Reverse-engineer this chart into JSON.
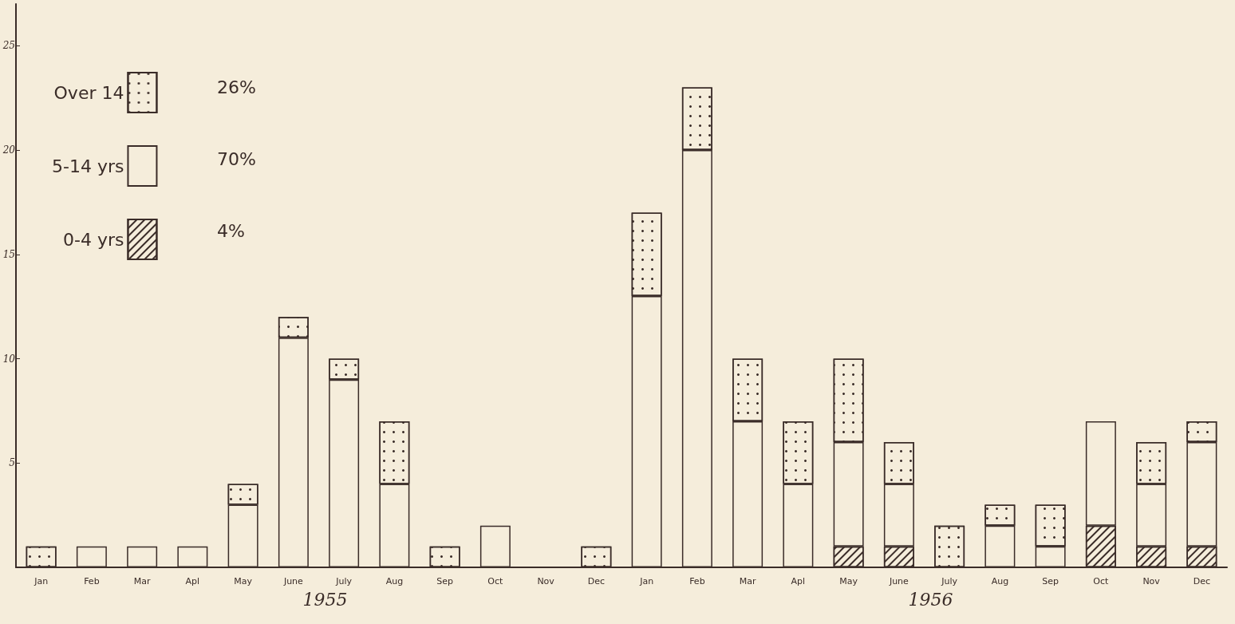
{
  "chart_data": {
    "type": "bar",
    "stacked": true,
    "categories": [
      "Jan",
      "Feb",
      "Mar",
      "Apl",
      "May",
      "June",
      "July",
      "Aug",
      "Sep",
      "Oct",
      "Nov",
      "Dec",
      "Jan",
      "Feb",
      "Mar",
      "Apl",
      "May",
      "June",
      "July",
      "Aug",
      "Sep",
      "Oct",
      "Nov",
      "Dec"
    ],
    "series": [
      {
        "name": "0-4 yrs",
        "color": "#f5eddb",
        "values": [
          0,
          0,
          0,
          0,
          0,
          0,
          0,
          0,
          0,
          0,
          0,
          0,
          0,
          0,
          0,
          0,
          1,
          1,
          0,
          0,
          0,
          2,
          1,
          1
        ]
      },
      {
        "name": "5-14 yrs",
        "color": "#f5eddb",
        "values": [
          0,
          1,
          1,
          1,
          3,
          11,
          9,
          4,
          0,
          2,
          0,
          0,
          13,
          20,
          7,
          4,
          5,
          3,
          0,
          2,
          1,
          5,
          3,
          5
        ]
      },
      {
        "name": "Over 14",
        "color": "#f5eddb",
        "values": [
          1,
          0,
          0,
          0,
          1,
          1,
          1,
          3,
          1,
          0,
          0,
          1,
          4,
          3,
          3,
          3,
          4,
          2,
          2,
          1,
          2,
          0,
          2,
          1
        ]
      }
    ],
    "ylim": [
      0,
      27
    ],
    "yticks": [
      5,
      10,
      15,
      20,
      25
    ],
    "legend": "top left",
    "grid": false,
    "annotations": [
      "1955",
      "1956",
      "4%",
      "70%",
      "26%"
    ]
  }
}
